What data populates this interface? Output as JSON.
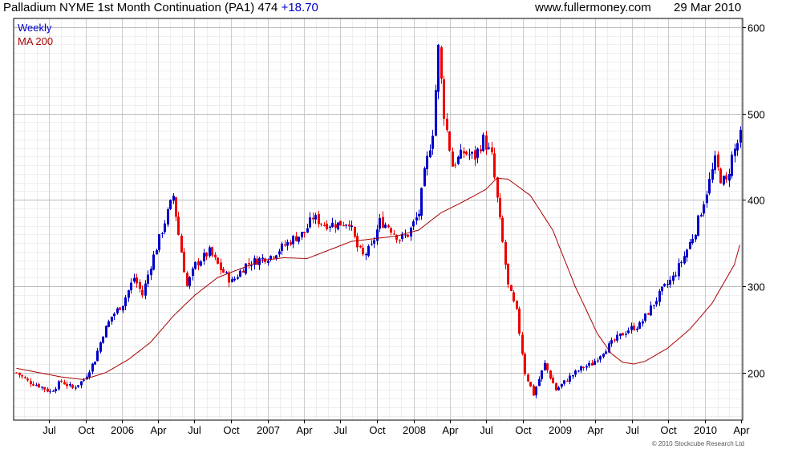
{
  "header": {
    "title": "Palladium NYME 1st Month Continuation (PA1) 474",
    "change": "+18.70",
    "site": "www.fullermoney.com",
    "date": "29 Mar 2010"
  },
  "legend": {
    "weekly": "Weekly",
    "ma": "MA 200",
    "weekly_color": "#0000cc",
    "ma_color": "#aa0000"
  },
  "footer": {
    "copyright": "© 2010 Stockcube Research Ltd"
  },
  "chart_data": {
    "type": "candlestick",
    "interval": "Weekly",
    "ylim": [
      145,
      610
    ],
    "y_ticks": [
      200,
      300,
      400,
      500,
      600
    ],
    "x_ticks": [
      "Jul",
      "Oct",
      "2006",
      "Apr",
      "Jul",
      "Oct",
      "2007",
      "Apr",
      "Jul",
      "Oct",
      "2008",
      "Apr",
      "Jul",
      "Oct",
      "2009",
      "Apr",
      "Jul",
      "Oct",
      "2010",
      "Apr"
    ],
    "x_range": [
      "2005-04-04",
      "2010-04-05"
    ],
    "grid": true,
    "up_color": "#0000cc",
    "down_color": "#ee0000",
    "price_path": [
      [
        "2005-04-11",
        200
      ],
      [
        "2005-05-09",
        190
      ],
      [
        "2005-06-06",
        185
      ],
      [
        "2005-07-04",
        178
      ],
      [
        "2005-08-01",
        190
      ],
      [
        "2005-08-29",
        182
      ],
      [
        "2005-09-26",
        192
      ],
      [
        "2005-10-24",
        215
      ],
      [
        "2005-11-14",
        245
      ],
      [
        "2005-12-05",
        265
      ],
      [
        "2006-01-02",
        280
      ],
      [
        "2006-01-30",
        310
      ],
      [
        "2006-02-20",
        290
      ],
      [
        "2006-03-13",
        325
      ],
      [
        "2006-04-03",
        355
      ],
      [
        "2006-04-24",
        385
      ],
      [
        "2006-05-08",
        405
      ],
      [
        "2006-05-22",
        360
      ],
      [
        "2006-06-12",
        300
      ],
      [
        "2006-07-03",
        325
      ],
      [
        "2006-08-07",
        340
      ],
      [
        "2006-09-04",
        320
      ],
      [
        "2006-10-02",
        305
      ],
      [
        "2006-11-06",
        325
      ],
      [
        "2006-12-04",
        330
      ],
      [
        "2007-01-08",
        335
      ],
      [
        "2007-02-05",
        345
      ],
      [
        "2007-03-05",
        355
      ],
      [
        "2007-04-02",
        362
      ],
      [
        "2007-04-23",
        380
      ],
      [
        "2007-05-21",
        372
      ],
      [
        "2007-06-25",
        372
      ],
      [
        "2007-07-23",
        375
      ],
      [
        "2007-08-13",
        345
      ],
      [
        "2007-08-27",
        335
      ],
      [
        "2007-09-17",
        345
      ],
      [
        "2007-10-08",
        375
      ],
      [
        "2007-10-29",
        370
      ],
      [
        "2007-11-26",
        355
      ],
      [
        "2007-12-17",
        360
      ],
      [
        "2008-01-14",
        385
      ],
      [
        "2008-01-28",
        430
      ],
      [
        "2008-02-18",
        480
      ],
      [
        "2008-03-03",
        575
      ],
      [
        "2008-03-17",
        500
      ],
      [
        "2008-04-07",
        440
      ],
      [
        "2008-05-05",
        455
      ],
      [
        "2008-06-02",
        450
      ],
      [
        "2008-06-23",
        470
      ],
      [
        "2008-07-14",
        450
      ],
      [
        "2008-08-04",
        375
      ],
      [
        "2008-08-25",
        300
      ],
      [
        "2008-09-15",
        270
      ],
      [
        "2008-10-06",
        200
      ],
      [
        "2008-10-27",
        175
      ],
      [
        "2008-11-24",
        210
      ],
      [
        "2008-12-22",
        180
      ],
      [
        "2009-01-26",
        195
      ],
      [
        "2009-02-23",
        205
      ],
      [
        "2009-03-23",
        210
      ],
      [
        "2009-04-20",
        225
      ],
      [
        "2009-05-25",
        240
      ],
      [
        "2009-06-22",
        250
      ],
      [
        "2009-07-20",
        255
      ],
      [
        "2009-08-17",
        275
      ],
      [
        "2009-09-14",
        295
      ],
      [
        "2009-10-12",
        310
      ],
      [
        "2009-11-09",
        335
      ],
      [
        "2009-12-07",
        365
      ],
      [
        "2010-01-04",
        410
      ],
      [
        "2010-01-25",
        445
      ],
      [
        "2010-02-08",
        425
      ],
      [
        "2010-02-22",
        420
      ],
      [
        "2010-03-08",
        450
      ],
      [
        "2010-03-29",
        474
      ]
    ],
    "ma200_path": [
      [
        "2005-04-11",
        205
      ],
      [
        "2005-06-06",
        200
      ],
      [
        "2005-08-01",
        195
      ],
      [
        "2005-09-26",
        192
      ],
      [
        "2005-11-21",
        200
      ],
      [
        "2006-01-16",
        215
      ],
      [
        "2006-03-13",
        235
      ],
      [
        "2006-05-08",
        265
      ],
      [
        "2006-07-03",
        290
      ],
      [
        "2006-08-28",
        310
      ],
      [
        "2006-10-23",
        320
      ],
      [
        "2006-12-18",
        330
      ],
      [
        "2007-02-12",
        333
      ],
      [
        "2007-04-09",
        332
      ],
      [
        "2007-06-04",
        342
      ],
      [
        "2007-07-30",
        352
      ],
      [
        "2007-09-24",
        355
      ],
      [
        "2007-11-19",
        358
      ],
      [
        "2008-01-14",
        365
      ],
      [
        "2008-03-10",
        385
      ],
      [
        "2008-05-05",
        398
      ],
      [
        "2008-06-30",
        412
      ],
      [
        "2008-07-28",
        425
      ],
      [
        "2008-08-25",
        424
      ],
      [
        "2008-10-20",
        405
      ],
      [
        "2008-12-15",
        365
      ],
      [
        "2009-02-09",
        300
      ],
      [
        "2009-04-06",
        245
      ],
      [
        "2009-05-11",
        222
      ],
      [
        "2009-06-08",
        212
      ],
      [
        "2009-07-06",
        210
      ],
      [
        "2009-08-03",
        213
      ],
      [
        "2009-09-28",
        228
      ],
      [
        "2009-11-23",
        250
      ],
      [
        "2010-01-18",
        280
      ],
      [
        "2010-03-15",
        325
      ],
      [
        "2010-03-29",
        348
      ]
    ]
  }
}
